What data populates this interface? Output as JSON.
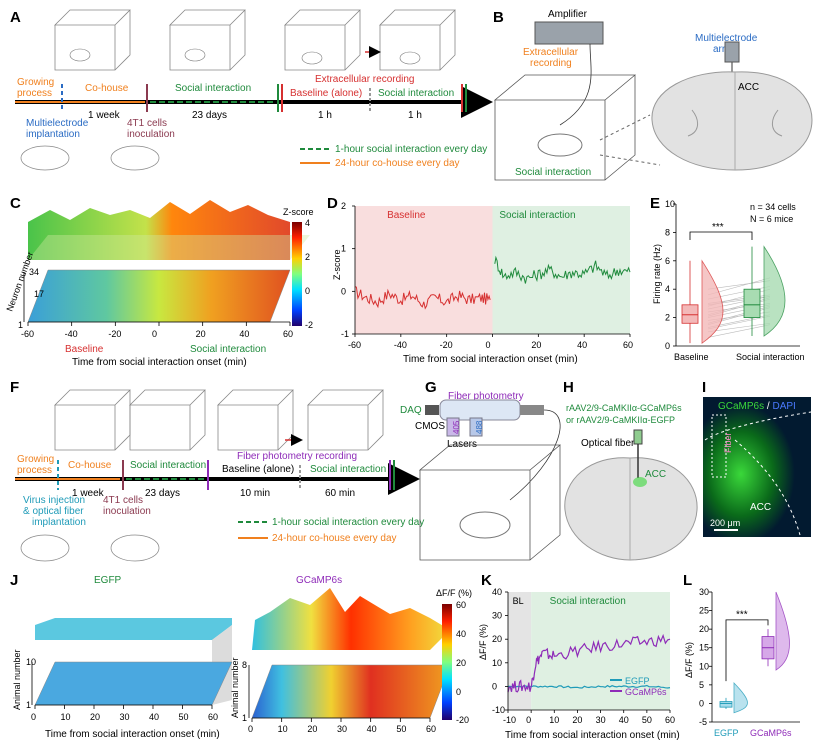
{
  "panel_letters": {
    "a": "A",
    "b": "B",
    "c": "C",
    "d": "D",
    "e": "E",
    "f": "F",
    "g": "G",
    "h": "H",
    "i": "I",
    "j": "J",
    "k": "K",
    "l": "L"
  },
  "panelA": {
    "growing": "Growing",
    "process": "process",
    "cohouse": "Co-house",
    "social_interaction": "Social interaction",
    "extracellular_recording": "Extracellular recording",
    "baseline_alone": "Baseline (alone)",
    "social_interaction2": "Social interaction",
    "multielectrode": "Multielectrode",
    "implantation": "implantation",
    "one_week": "1 week",
    "t4t1_cells": "4T1 cells",
    "inoculation": "inoculation",
    "days": "23 days",
    "one_h_a": "1 h",
    "one_h_b": "1 h",
    "legend_social": "1-hour social interaction every day",
    "legend_cohouse": "24-hour co-house every day"
  },
  "panelB": {
    "amplifier": "Amplifier",
    "extracellular": "Extracellular",
    "recording": "recording",
    "multielectrode": "Multielectrode",
    "array": "array",
    "acc": "ACC",
    "social_interaction": "Social interaction"
  },
  "panelC": {
    "zscore": "Z-score",
    "ticks_z": [
      "4",
      "2",
      "0",
      "-2"
    ],
    "neuron_number": "Neuron number",
    "neuron_ticks": [
      "34",
      "17",
      "1"
    ],
    "x_ticks": [
      "-60",
      "-40",
      "-20",
      "0",
      "20",
      "40",
      "60"
    ],
    "baseline": "Baseline",
    "social_interaction": "Social interaction",
    "xlabel": "Time from social interaction onset (min)"
  },
  "panelE": {
    "n_cells": "n = 34 cells",
    "n_mice": "N = 6 mice",
    "stars": "***",
    "ylabel": "Firing rate (Hz)",
    "cat_baseline": "Baseline",
    "cat_social": "Social interaction"
  },
  "panelF": {
    "growing": "Growing",
    "process": "process",
    "cohouse": "Co-house",
    "social_interaction": "Social interaction",
    "fiber_recording": "Fiber photometry recording",
    "baseline_alone": "Baseline (alone)",
    "social_interaction2": "Social interaction",
    "virus1": "Virus injection",
    "virus2": "& optical fiber",
    "virus3": "implantation",
    "one_week": "1 week",
    "t4t1_cells": "4T1 cells",
    "inoculation": "inoculation",
    "days": "23 days",
    "ten_min": "10 min",
    "sixty_min": "60 min",
    "legend_social": "1-hour social interaction every day",
    "legend_cohouse": "24-hour co-house every day"
  },
  "panelG": {
    "fiber_photometry": "Fiber photometry",
    "daq": "DAQ",
    "cmos": "CMOS",
    "lasers": "Lasers",
    "l405": "405",
    "l488": "488"
  },
  "panelH": {
    "virus_line1": "rAAV2/9-CaMKIIα-GCaMP6s",
    "virus_line2": "or  rAAV2/9-CaMKIIα-EGFP",
    "optical_fiber": "Optical fiber",
    "acc": "ACC"
  },
  "panelI": {
    "gcamp": "GCaMP6s",
    "slash": " / ",
    "dapi": "DAPI",
    "fiber": "Fiber",
    "acc": "ACC",
    "scale": "200 μm"
  },
  "panelJ": {
    "egfp": "EGFP",
    "gcamp": "GCaMP6s",
    "dff": "ΔF/F (%)",
    "cb_ticks": [
      "60",
      "40",
      "20",
      "0",
      "-20"
    ],
    "animal_number": "Animal number",
    "egfp_animal_ticks": [
      "10",
      "1"
    ],
    "gcamp_animal_ticks": [
      "8",
      "1"
    ],
    "x_ticks": [
      "0",
      "10",
      "20",
      "30",
      "40",
      "50",
      "60"
    ],
    "xlabel": "Time from social interaction onset (min)"
  },
  "panelL": {
    "stars": "***",
    "ylabel": "ΔF/F (%)",
    "cat_egfp": "EGFP",
    "cat_gcamp": "GCaMP6s"
  },
  "colors": {
    "orange": "#f0801e",
    "green": "#1f8a3c",
    "blue": "#2b6cc4",
    "red": "#d63030",
    "purple": "#8e2bb8",
    "maroon": "#8b3a50",
    "teal": "#1f9bb8"
  },
  "chart_data": [
    {
      "id": "D",
      "type": "line",
      "title": "",
      "xlabel": "Time from social interaction onset (min)",
      "ylabel": "Z-score",
      "xlim": [
        -60,
        60
      ],
      "ylim": [
        -1,
        2
      ],
      "x_ticks": [
        -60,
        -40,
        -20,
        0,
        20,
        40,
        60
      ],
      "y_ticks": [
        -1,
        0,
        1,
        2
      ],
      "regions": [
        {
          "name": "Baseline",
          "x": [
            -60,
            0
          ]
        },
        {
          "name": "Social interaction",
          "x": [
            0,
            60
          ]
        }
      ],
      "series": [
        {
          "x": [
            -60,
            -55,
            -50,
            -45,
            -40,
            -35,
            -30,
            -25,
            -20,
            -15,
            -10,
            -5,
            -1
          ],
          "values": [
            0.0,
            -0.15,
            -0.25,
            -0.05,
            -0.2,
            -0.1,
            -0.3,
            -0.15,
            -0.25,
            -0.1,
            -0.2,
            -0.15,
            -0.2
          ]
        },
        {
          "x": [
            1,
            5,
            10,
            15,
            20,
            25,
            30,
            35,
            40,
            45,
            50,
            55,
            60
          ],
          "values": [
            0.75,
            0.35,
            0.45,
            0.3,
            0.4,
            0.5,
            0.35,
            0.45,
            0.4,
            0.6,
            0.35,
            0.5,
            0.45
          ]
        }
      ]
    },
    {
      "id": "E",
      "type": "box",
      "ylabel": "Firing rate (Hz)",
      "ylim": [
        0,
        10
      ],
      "y_ticks": [
        0,
        2,
        4,
        6,
        8,
        10
      ],
      "categories": [
        "Baseline",
        "Social interaction"
      ],
      "series": [
        {
          "name": "Baseline",
          "min": 0.2,
          "q1": 1.6,
          "median": 2.2,
          "q3": 2.9,
          "max": 6.0
        },
        {
          "name": "Social interaction",
          "min": 0.7,
          "q1": 2.0,
          "median": 2.9,
          "q3": 4.0,
          "max": 7.0
        }
      ]
    },
    {
      "id": "K",
      "type": "line",
      "xlabel": "Time from social interaction onset (min)",
      "ylabel": "ΔF/F (%)",
      "xlim": [
        -10,
        60
      ],
      "ylim": [
        -10,
        40
      ],
      "x_ticks": [
        -10,
        0,
        10,
        20,
        30,
        40,
        50,
        60
      ],
      "y_ticks": [
        -10,
        0,
        10,
        20,
        30,
        40
      ],
      "regions": [
        {
          "name": "BL",
          "x": [
            -10,
            0
          ]
        },
        {
          "name": "Social interaction",
          "x": [
            0,
            60
          ]
        }
      ],
      "series": [
        {
          "name": "EGFP",
          "x": [
            -10,
            0,
            10,
            20,
            30,
            40,
            50,
            60
          ],
          "values": [
            0,
            0,
            0,
            -0.5,
            0,
            0,
            0,
            -0.5
          ]
        },
        {
          "name": "GCaMP6s",
          "x": [
            -10,
            -5,
            0,
            2,
            5,
            10,
            20,
            30,
            40,
            50,
            60
          ],
          "values": [
            0,
            0,
            0,
            10,
            14,
            13,
            15,
            17,
            18,
            19,
            20
          ]
        }
      ]
    },
    {
      "id": "L",
      "type": "box",
      "ylabel": "ΔF/F (%)",
      "ylim": [
        -5,
        30
      ],
      "y_ticks": [
        -5,
        0,
        5,
        10,
        15,
        20,
        25,
        30
      ],
      "categories": [
        "EGFP",
        "GCaMP6s"
      ],
      "series": [
        {
          "name": "EGFP",
          "min": -1.5,
          "q1": -1,
          "median": 0,
          "q3": 0.5,
          "max": 1.5
        },
        {
          "name": "GCaMP6s",
          "min": 10,
          "q1": 12,
          "median": 15,
          "q3": 18,
          "max": 20
        }
      ]
    }
  ]
}
